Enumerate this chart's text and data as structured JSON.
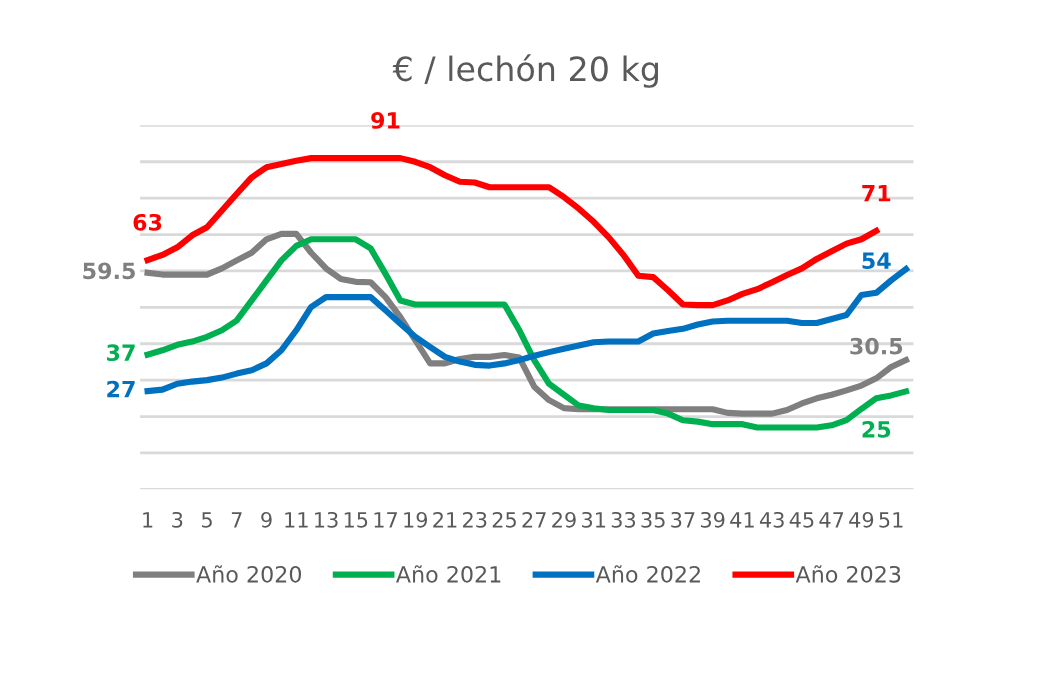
{
  "chart_data": {
    "type": "line",
    "title": "€ / lechón 20 kg",
    "x": [
      1,
      2,
      3,
      4,
      5,
      6,
      7,
      8,
      9,
      10,
      11,
      12,
      13,
      14,
      15,
      16,
      17,
      18,
      19,
      20,
      21,
      22,
      23,
      24,
      25,
      26,
      27,
      28,
      29,
      30,
      31,
      32,
      33,
      34,
      35,
      36,
      37,
      38,
      39,
      40,
      41,
      42,
      43,
      44,
      45,
      46,
      47,
      48,
      49,
      50,
      51,
      52
    ],
    "xlim": [
      0.5,
      52.5
    ],
    "xticks": [
      1,
      3,
      5,
      7,
      9,
      11,
      13,
      15,
      17,
      19,
      21,
      23,
      25,
      27,
      29,
      31,
      33,
      35,
      37,
      39,
      41,
      43,
      45,
      47,
      49,
      51
    ],
    "ylim": [
      0,
      100
    ],
    "yticks": [
      {
        "value": 0,
        "label": null
      },
      {
        "value": 10,
        "label": null
      },
      {
        "value": 20,
        "label": null
      },
      {
        "value": 30,
        "label": null
      },
      {
        "value": 40,
        "label": null
      },
      {
        "value": 50,
        "label": null
      },
      {
        "value": 60,
        "label": null
      },
      {
        "value": 70,
        "label": null
      },
      {
        "value": 80,
        "label": null
      },
      {
        "value": 90,
        "label": null
      },
      {
        "value": 100,
        "label": null
      }
    ],
    "tick_labels": "x",
    "grid": "y",
    "legend": "bottom",
    "marker": "none",
    "line_style": "solid",
    "series": [
      {
        "name": "Año 2020",
        "color": "#7f7f7f",
        "values": [
          59.5,
          59,
          59,
          59,
          59,
          60.7,
          62.9,
          65,
          68.7,
          70.2,
          70.2,
          65,
          60.7,
          57.8,
          57,
          56.9,
          52.8,
          47.3,
          41,
          34.6,
          34.6,
          35.8,
          36.4,
          36.4,
          36.9,
          36.2,
          28.2,
          24.5,
          22.3,
          22,
          22,
          22,
          22,
          22,
          22,
          22,
          22,
          22,
          22,
          21,
          20.8,
          20.8,
          20.8,
          21.8,
          23.6,
          25,
          26,
          27.2,
          28.5,
          30.5,
          33.6,
          35.5
        ],
        "value_labels": [
          "59.5",
          null,
          null,
          null,
          null,
          null,
          null,
          null,
          null,
          null,
          null,
          null,
          null,
          null,
          null,
          null,
          null,
          null,
          null,
          null,
          null,
          null,
          null,
          null,
          null,
          null,
          null,
          null,
          null,
          null,
          null,
          null,
          null,
          null,
          null,
          null,
          null,
          null,
          null,
          null,
          null,
          null,
          null,
          null,
          null,
          null,
          null,
          null,
          null,
          "30.5",
          null,
          null
        ]
      },
      {
        "name": "Año 2021",
        "color": "#00b050",
        "values": [
          37,
          38.2,
          39.7,
          40.6,
          41.9,
          43.7,
          46.4,
          51.9,
          57.4,
          62.9,
          66.9,
          68.7,
          68.7,
          68.7,
          68.7,
          66.2,
          59.2,
          51.9,
          50.8,
          50.8,
          50.8,
          50.8,
          50.8,
          50.8,
          50.8,
          43.7,
          35.5,
          29,
          26,
          23,
          22.3,
          21.8,
          21.8,
          21.8,
          21.8,
          20.8,
          19,
          18.6,
          17.9,
          17.9,
          17.9,
          17,
          17,
          17,
          17,
          17,
          17.6,
          19,
          22.1,
          25,
          25.8,
          26.9
        ],
        "value_labels": [
          "37",
          null,
          null,
          null,
          null,
          null,
          null,
          null,
          null,
          null,
          null,
          null,
          null,
          null,
          null,
          null,
          null,
          null,
          null,
          null,
          null,
          null,
          null,
          null,
          null,
          null,
          null,
          null,
          null,
          null,
          null,
          null,
          null,
          null,
          null,
          null,
          null,
          null,
          null,
          null,
          null,
          null,
          null,
          null,
          null,
          null,
          null,
          null,
          null,
          "25",
          null,
          null
        ]
      },
      {
        "name": "Año 2022",
        "color": "#0070c0",
        "values": [
          27,
          27.4,
          29,
          29.6,
          30,
          30.7,
          31.8,
          32.7,
          34.6,
          38.2,
          43.7,
          50.1,
          52.8,
          52.8,
          52.8,
          52.8,
          49.2,
          45.5,
          41.9,
          39.1,
          36.4,
          35.1,
          34.2,
          34,
          34.6,
          35.5,
          36.7,
          37.7,
          38.6,
          39.5,
          40.4,
          40.6,
          40.6,
          40.6,
          42.8,
          43.5,
          44.1,
          45.3,
          46.1,
          46.3,
          46.3,
          46.3,
          46.3,
          46.3,
          45.7,
          45.7,
          46.8,
          47.9,
          53.4,
          54,
          57.4,
          60.5
        ],
        "value_labels": [
          "27",
          null,
          null,
          null,
          null,
          null,
          null,
          null,
          null,
          null,
          null,
          null,
          null,
          null,
          null,
          null,
          null,
          null,
          null,
          null,
          null,
          null,
          null,
          null,
          null,
          null,
          null,
          null,
          null,
          null,
          null,
          null,
          null,
          null,
          null,
          null,
          null,
          null,
          null,
          null,
          null,
          null,
          null,
          null,
          null,
          null,
          null,
          null,
          null,
          "54",
          null,
          null
        ]
      },
      {
        "name": "Año 2023",
        "color": "#ff0000",
        "values": [
          63,
          64.4,
          66.5,
          69.8,
          72,
          76.6,
          81.2,
          85.7,
          88.5,
          89.4,
          90.3,
          91,
          91,
          91,
          91,
          91,
          91,
          91,
          90,
          88.5,
          86.3,
          84.5,
          84.3,
          83,
          83,
          83,
          83,
          83,
          80.3,
          77.1,
          73.5,
          69.3,
          64.4,
          58.7,
          58.3,
          54.7,
          50.8,
          50.6,
          50.6,
          51.9,
          53.7,
          55,
          56.9,
          58.9,
          60.7,
          63.3,
          65.4,
          67.5,
          68.7,
          71,
          null,
          null
        ],
        "value_labels": [
          "63",
          null,
          null,
          null,
          null,
          null,
          null,
          null,
          null,
          null,
          null,
          null,
          null,
          null,
          null,
          null,
          "91",
          null,
          null,
          null,
          null,
          null,
          null,
          null,
          null,
          null,
          null,
          null,
          null,
          null,
          null,
          null,
          null,
          null,
          null,
          null,
          null,
          null,
          null,
          null,
          null,
          null,
          null,
          null,
          null,
          null,
          null,
          null,
          null,
          "71",
          null,
          null
        ]
      }
    ]
  }
}
